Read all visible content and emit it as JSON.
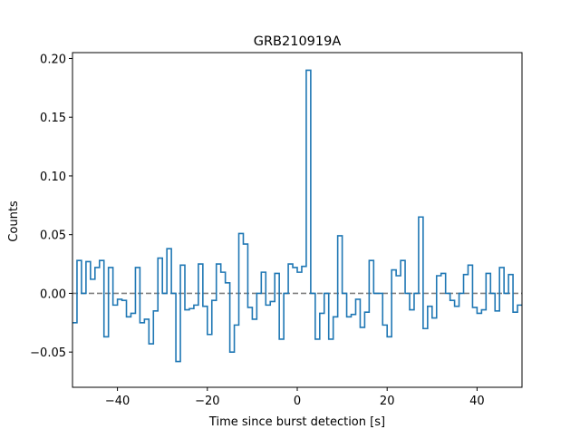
{
  "chart_data": {
    "type": "line",
    "title": "GRB210919A",
    "xlabel": "Time since burst detection [s]",
    "ylabel": "Counts",
    "xlim": [
      -50,
      50
    ],
    "ylim": [
      -0.08,
      0.205
    ],
    "xticks": [
      -40,
      -20,
      0,
      20,
      40
    ],
    "xtick_labels": [
      "−40",
      "−20",
      "0",
      "20",
      "40"
    ],
    "yticks": [
      -0.05,
      0.0,
      0.05,
      0.1,
      0.15,
      0.2
    ],
    "ytick_labels": [
      "−0.05",
      "0.00",
      "0.05",
      "0.10",
      "0.15",
      "0.20"
    ],
    "grid": false,
    "series_color": "#1f77b4",
    "baseline": {
      "y": 0.0,
      "style": "dashed",
      "color": "#808080"
    },
    "bin_width": 1,
    "bin_starts": [
      -50,
      -49,
      -48,
      -47,
      -46,
      -45,
      -44,
      -43,
      -42,
      -41,
      -40,
      -39,
      -38,
      -37,
      -36,
      -35,
      -34,
      -33,
      -32,
      -31,
      -30,
      -29,
      -28,
      -27,
      -26,
      -25,
      -24,
      -23,
      -22,
      -21,
      -20,
      -19,
      -18,
      -17,
      -16,
      -15,
      -14,
      -13,
      -12,
      -11,
      -10,
      -9,
      -8,
      -7,
      -6,
      -5,
      -4,
      -3,
      -2,
      -1,
      0,
      1,
      2,
      3,
      4,
      5,
      6,
      7,
      8,
      9,
      10,
      11,
      12,
      13,
      14,
      15,
      16,
      17,
      18,
      19,
      20,
      21,
      22,
      23,
      24,
      25,
      26,
      27,
      28,
      29,
      30,
      31,
      32,
      33,
      34,
      35,
      36,
      37,
      38,
      39,
      40,
      41,
      42,
      43,
      44,
      45,
      46,
      47,
      48,
      49
    ],
    "values": [
      -0.025,
      0.028,
      0.0,
      0.027,
      0.012,
      0.022,
      0.028,
      -0.037,
      0.022,
      -0.01,
      -0.005,
      -0.006,
      -0.02,
      -0.017,
      0.022,
      -0.025,
      -0.022,
      -0.043,
      -0.015,
      0.03,
      0.0,
      0.038,
      0.0,
      -0.058,
      0.024,
      -0.014,
      -0.013,
      -0.01,
      0.025,
      -0.011,
      -0.035,
      -0.006,
      0.025,
      0.018,
      0.009,
      -0.05,
      -0.027,
      0.051,
      0.042,
      -0.012,
      -0.022,
      0.0,
      0.018,
      -0.01,
      -0.007,
      0.017,
      -0.039,
      0.0,
      0.025,
      0.022,
      0.018,
      0.023,
      0.19,
      0.0,
      -0.039,
      -0.017,
      0.0,
      -0.039,
      -0.02,
      0.049,
      0.0,
      -0.02,
      -0.018,
      -0.005,
      -0.029,
      -0.016,
      0.028,
      0.0,
      0.0,
      -0.027,
      -0.037,
      0.02,
      0.015,
      0.028,
      0.0,
      -0.014,
      0.0,
      0.065,
      -0.03,
      -0.011,
      -0.021,
      0.015,
      0.017,
      0.0,
      -0.006,
      -0.011,
      0.0,
      0.016,
      0.024,
      -0.012,
      -0.017,
      -0.014,
      0.017,
      0.0,
      -0.015,
      0.022,
      0.0,
      0.016,
      -0.016,
      -0.01
    ]
  }
}
